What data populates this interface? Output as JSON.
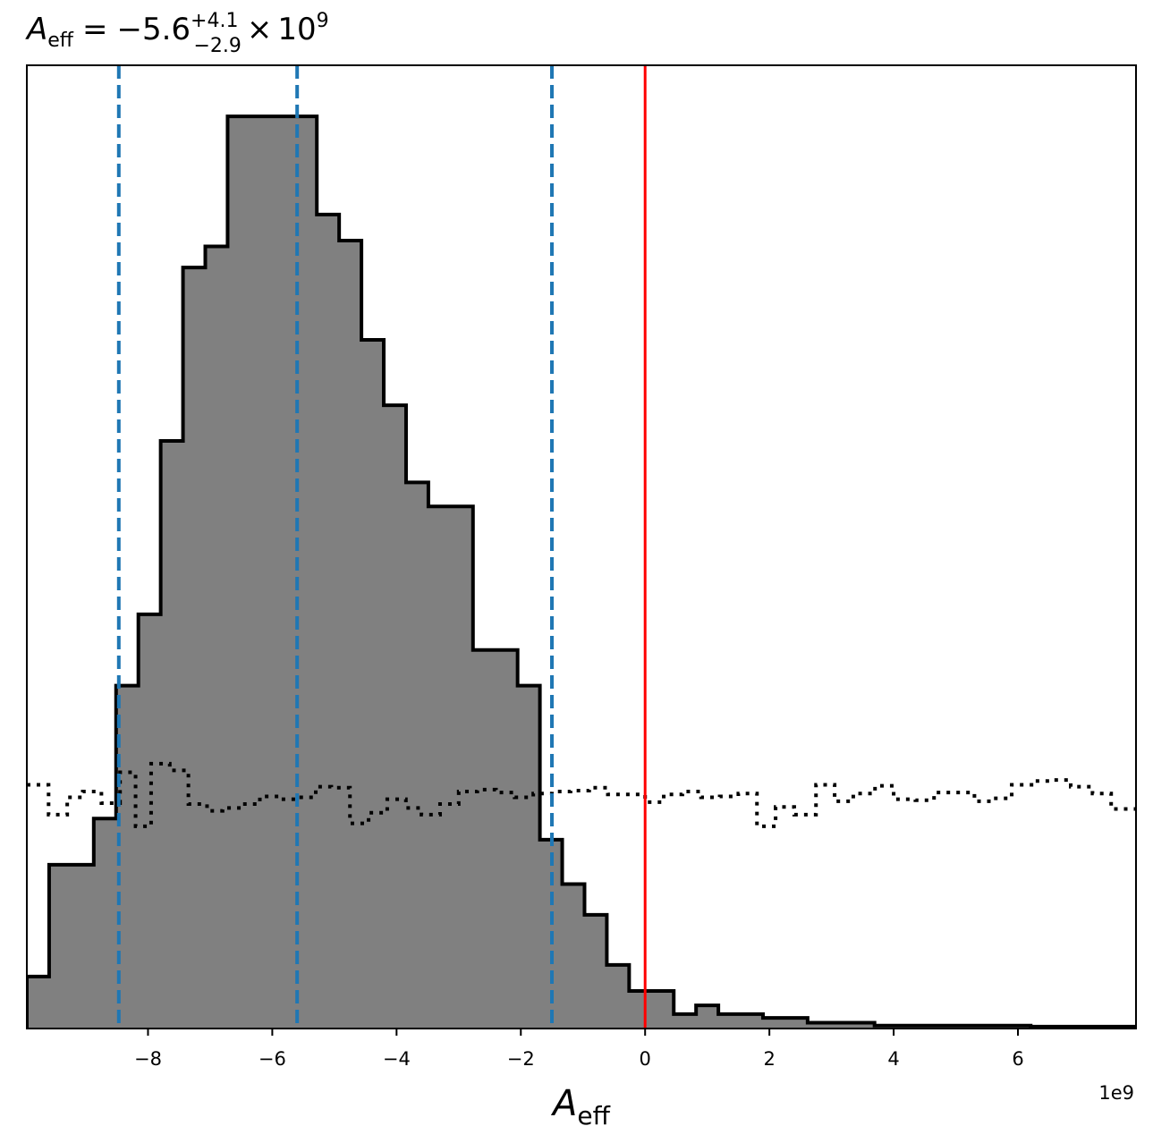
{
  "chart_data": {
    "type": "histogram",
    "title": {
      "symbol": "A",
      "symbol_sub": "eff",
      "equals": "=",
      "central": "−5.6",
      "err_plus": "+4.1",
      "err_minus": "−2.9",
      "times": "×",
      "exponent_base": "10",
      "exponent": "9"
    },
    "xlabel": {
      "symbol": "A",
      "sub": "eff"
    },
    "offset_text": "1e9",
    "xlim": [
      -9.95,
      7.9
    ],
    "ylim": [
      0,
      1.0
    ],
    "bin_width": 0.359,
    "x_ticks": [
      -8,
      -6,
      -4,
      -2,
      0,
      2,
      4,
      6
    ],
    "x_tick_labels": [
      "−8",
      "−6",
      "−4",
      "−2",
      "0",
      "2",
      "4",
      "6"
    ],
    "y_ticks_shown": false,
    "grid": false,
    "posterior": {
      "name": "",
      "fill_color": "#808080",
      "edge_color": "#000000",
      "bin_edges": [
        -9.95,
        -9.591,
        -9.232,
        -8.873,
        -8.514,
        -8.155,
        -7.796,
        -7.437,
        -7.078,
        -6.719,
        -6.36,
        -6.001,
        -5.642,
        -5.283,
        -4.924,
        -4.565,
        -4.206,
        -3.847,
        -3.488,
        -3.129,
        -2.77,
        -2.411,
        -2.052,
        -1.693,
        -1.334,
        -0.975,
        -0.616,
        -0.257,
        0.102,
        0.461,
        0.82,
        1.179,
        1.538,
        1.897,
        2.256,
        2.615,
        2.974,
        3.333,
        3.692,
        4.051,
        4.41,
        4.769,
        5.128,
        5.487,
        5.846,
        6.205,
        6.564,
        6.923,
        7.282,
        7.641,
        7.9
      ],
      "counts": [
        0.054,
        0.17,
        0.17,
        0.218,
        0.356,
        0.43,
        0.61,
        0.79,
        0.812,
        0.947,
        0.947,
        0.947,
        0.947,
        0.845,
        0.818,
        0.715,
        0.647,
        0.567,
        0.542,
        0.542,
        0.393,
        0.393,
        0.356,
        0.196,
        0.15,
        0.118,
        0.066,
        0.039,
        0.039,
        0.015,
        0.024,
        0.015,
        0.015,
        0.011,
        0.011,
        0.006,
        0.006,
        0.006,
        0.003,
        0.003,
        0.003,
        0.003,
        0.003,
        0.003,
        0.003,
        0.002,
        0.002,
        0.002,
        0.002,
        0.002
      ]
    },
    "prior": {
      "name": "",
      "line_style": "dotted",
      "color": "#000000",
      "x_edges": [
        -9.95,
        -9.6,
        -9.3,
        -9.05,
        -8.75,
        -8.45,
        -8.2,
        -7.95,
        -7.65,
        -7.35,
        -7.05,
        -6.8,
        -6.5,
        -6.2,
        -5.9,
        -5.6,
        -5.3,
        -5.05,
        -4.75,
        -4.45,
        -4.15,
        -3.85,
        -3.6,
        -3.3,
        -3.0,
        -2.7,
        -2.4,
        -2.1,
        -1.8,
        -1.5,
        -1.2,
        -0.9,
        -0.6,
        -0.3,
        0.0,
        0.3,
        0.6,
        0.9,
        1.2,
        1.5,
        1.8,
        2.1,
        2.4,
        2.75,
        3.05,
        3.35,
        3.7,
        4.0,
        4.35,
        4.65,
        4.95,
        5.3,
        5.6,
        5.9,
        6.25,
        6.55,
        6.85,
        7.2,
        7.5,
        7.9
      ],
      "levels": [
        0.253,
        0.222,
        0.24,
        0.246,
        0.234,
        0.266,
        0.21,
        0.275,
        0.268,
        0.233,
        0.226,
        0.229,
        0.233,
        0.241,
        0.238,
        0.24,
        0.251,
        0.25,
        0.213,
        0.224,
        0.238,
        0.229,
        0.222,
        0.233,
        0.246,
        0.248,
        0.245,
        0.24,
        0.244,
        0.246,
        0.247,
        0.25,
        0.243,
        0.243,
        0.235,
        0.243,
        0.246,
        0.24,
        0.241,
        0.244,
        0.21,
        0.23,
        0.222,
        0.253,
        0.236,
        0.244,
        0.252,
        0.238,
        0.237,
        0.245,
        0.245,
        0.236,
        0.239,
        0.253,
        0.257,
        0.258,
        0.251,
        0.244,
        0.228,
        0.227
      ]
    },
    "quantile_lines": {
      "color": "#1f77b4",
      "line_style": "dashed",
      "values": [
        -8.47,
        -5.6,
        -1.5
      ]
    },
    "reference_line": {
      "color": "#ff0000",
      "line_style": "solid",
      "value": 0
    }
  }
}
